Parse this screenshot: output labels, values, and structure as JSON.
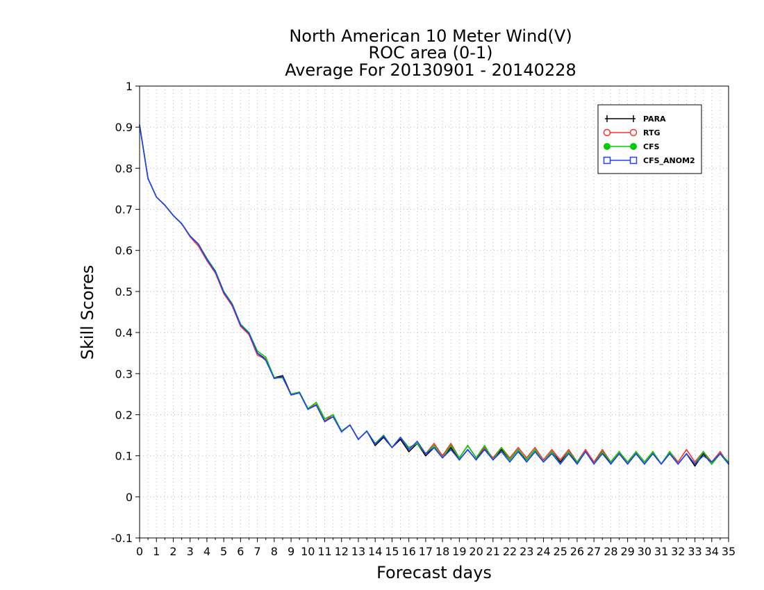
{
  "chart_data": {
    "type": "line",
    "title_lines": [
      "North American 10 Meter Wind(V)",
      "ROC area (0-1)",
      "Average For 20130901 - 20140228"
    ],
    "xlabel": "Forecast days",
    "ylabel": "Skill Scores",
    "xlim": [
      0,
      35
    ],
    "ylim": [
      -0.1,
      1.0
    ],
    "x_step": 0.5,
    "x_ticks": [
      "0",
      "1",
      "2",
      "3",
      "4",
      "5",
      "6",
      "7",
      "8",
      "9",
      "10",
      "11",
      "12",
      "13",
      "14",
      "15",
      "16",
      "17",
      "18",
      "19",
      "20",
      "21",
      "22",
      "23",
      "24",
      "25",
      "26",
      "27",
      "28",
      "29",
      "30",
      "31",
      "32",
      "33",
      "34",
      "35"
    ],
    "y_ticks": [
      "-0.1",
      "0",
      "0.1",
      "0.2",
      "0.3",
      "0.4",
      "0.5",
      "0.6",
      "0.7",
      "0.8",
      "0.9",
      "1"
    ],
    "grid": true,
    "legend_position": "top-right",
    "series": [
      {
        "name": "PARA",
        "color": "#000000",
        "marker": "plus",
        "values": [
          0.905,
          0.775,
          0.73,
          0.71,
          0.685,
          0.665,
          0.635,
          0.615,
          0.58,
          0.55,
          0.5,
          0.47,
          0.42,
          0.4,
          0.35,
          0.335,
          0.29,
          0.295,
          0.25,
          0.255,
          0.215,
          0.225,
          0.185,
          0.195,
          0.16,
          0.175,
          0.14,
          0.16,
          0.125,
          0.145,
          0.12,
          0.14,
          0.11,
          0.13,
          0.1,
          0.12,
          0.095,
          0.12,
          0.09,
          0.115,
          0.09,
          0.12,
          0.09,
          0.115,
          0.09,
          0.115,
          0.085,
          0.11,
          0.085,
          0.11,
          0.085,
          0.11,
          0.08,
          0.11,
          0.085,
          0.11,
          0.08,
          0.105,
          0.08,
          0.105,
          0.08,
          0.105,
          0.08,
          0.105,
          0.08,
          0.105,
          0.075,
          0.105,
          0.08,
          0.105,
          0.08
        ]
      },
      {
        "name": "RTG",
        "color": "#ff3030",
        "marker": "open-circle",
        "values": [
          0.905,
          0.775,
          0.73,
          0.71,
          0.685,
          0.665,
          0.633,
          0.61,
          0.575,
          0.545,
          0.495,
          0.465,
          0.415,
          0.395,
          0.345,
          0.335,
          0.29,
          0.29,
          0.25,
          0.255,
          0.215,
          0.225,
          0.185,
          0.2,
          0.16,
          0.175,
          0.14,
          0.16,
          0.13,
          0.15,
          0.12,
          0.145,
          0.12,
          0.13,
          0.105,
          0.13,
          0.1,
          0.13,
          0.095,
          0.125,
          0.095,
          0.12,
          0.095,
          0.12,
          0.095,
          0.12,
          0.095,
          0.12,
          0.09,
          0.115,
          0.09,
          0.115,
          0.085,
          0.115,
          0.085,
          0.115,
          0.085,
          0.11,
          0.08,
          0.11,
          0.085,
          0.11,
          0.08,
          0.11,
          0.085,
          0.115,
          0.085,
          0.11,
          0.085,
          0.11,
          0.08
        ]
      },
      {
        "name": "CFS",
        "color": "#00cc00",
        "marker": "filled-circle",
        "values": [
          0.905,
          0.775,
          0.73,
          0.71,
          0.685,
          0.665,
          0.635,
          0.615,
          0.58,
          0.55,
          0.5,
          0.47,
          0.42,
          0.4,
          0.355,
          0.34,
          0.29,
          0.29,
          0.25,
          0.255,
          0.215,
          0.23,
          0.19,
          0.2,
          0.16,
          0.175,
          0.14,
          0.16,
          0.13,
          0.15,
          0.12,
          0.145,
          0.12,
          0.13,
          0.105,
          0.125,
          0.095,
          0.125,
          0.095,
          0.125,
          0.095,
          0.125,
          0.09,
          0.12,
          0.09,
          0.115,
          0.09,
          0.115,
          0.085,
          0.11,
          0.08,
          0.11,
          0.085,
          0.11,
          0.08,
          0.11,
          0.085,
          0.11,
          0.085,
          0.11,
          0.085,
          0.11,
          0.08,
          0.11,
          0.08,
          0.105,
          0.08,
          0.11,
          0.08,
          0.105,
          0.085
        ]
      },
      {
        "name": "CFS_ANOM2",
        "color": "#2040ff",
        "marker": "open-square",
        "values": [
          0.905,
          0.775,
          0.73,
          0.71,
          0.685,
          0.665,
          0.635,
          0.615,
          0.578,
          0.548,
          0.498,
          0.468,
          0.418,
          0.398,
          0.35,
          0.332,
          0.288,
          0.292,
          0.248,
          0.253,
          0.213,
          0.223,
          0.183,
          0.195,
          0.158,
          0.175,
          0.14,
          0.16,
          0.128,
          0.148,
          0.12,
          0.145,
          0.115,
          0.135,
          0.105,
          0.12,
          0.095,
          0.115,
          0.09,
          0.115,
          0.09,
          0.115,
          0.09,
          0.11,
          0.085,
          0.11,
          0.085,
          0.11,
          0.085,
          0.105,
          0.08,
          0.105,
          0.08,
          0.11,
          0.08,
          0.105,
          0.08,
          0.105,
          0.08,
          0.105,
          0.08,
          0.105,
          0.08,
          0.105,
          0.08,
          0.105,
          0.08,
          0.1,
          0.085,
          0.105,
          0.08
        ]
      }
    ]
  }
}
